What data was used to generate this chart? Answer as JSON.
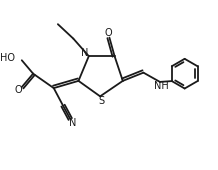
{
  "bg_color": "#ffffff",
  "line_color": "#1a1a1a",
  "line_width": 1.3,
  "fig_width": 2.18,
  "fig_height": 1.7,
  "dpi": 100,
  "xlim": [
    0,
    10
  ],
  "ylim": [
    0,
    8
  ]
}
